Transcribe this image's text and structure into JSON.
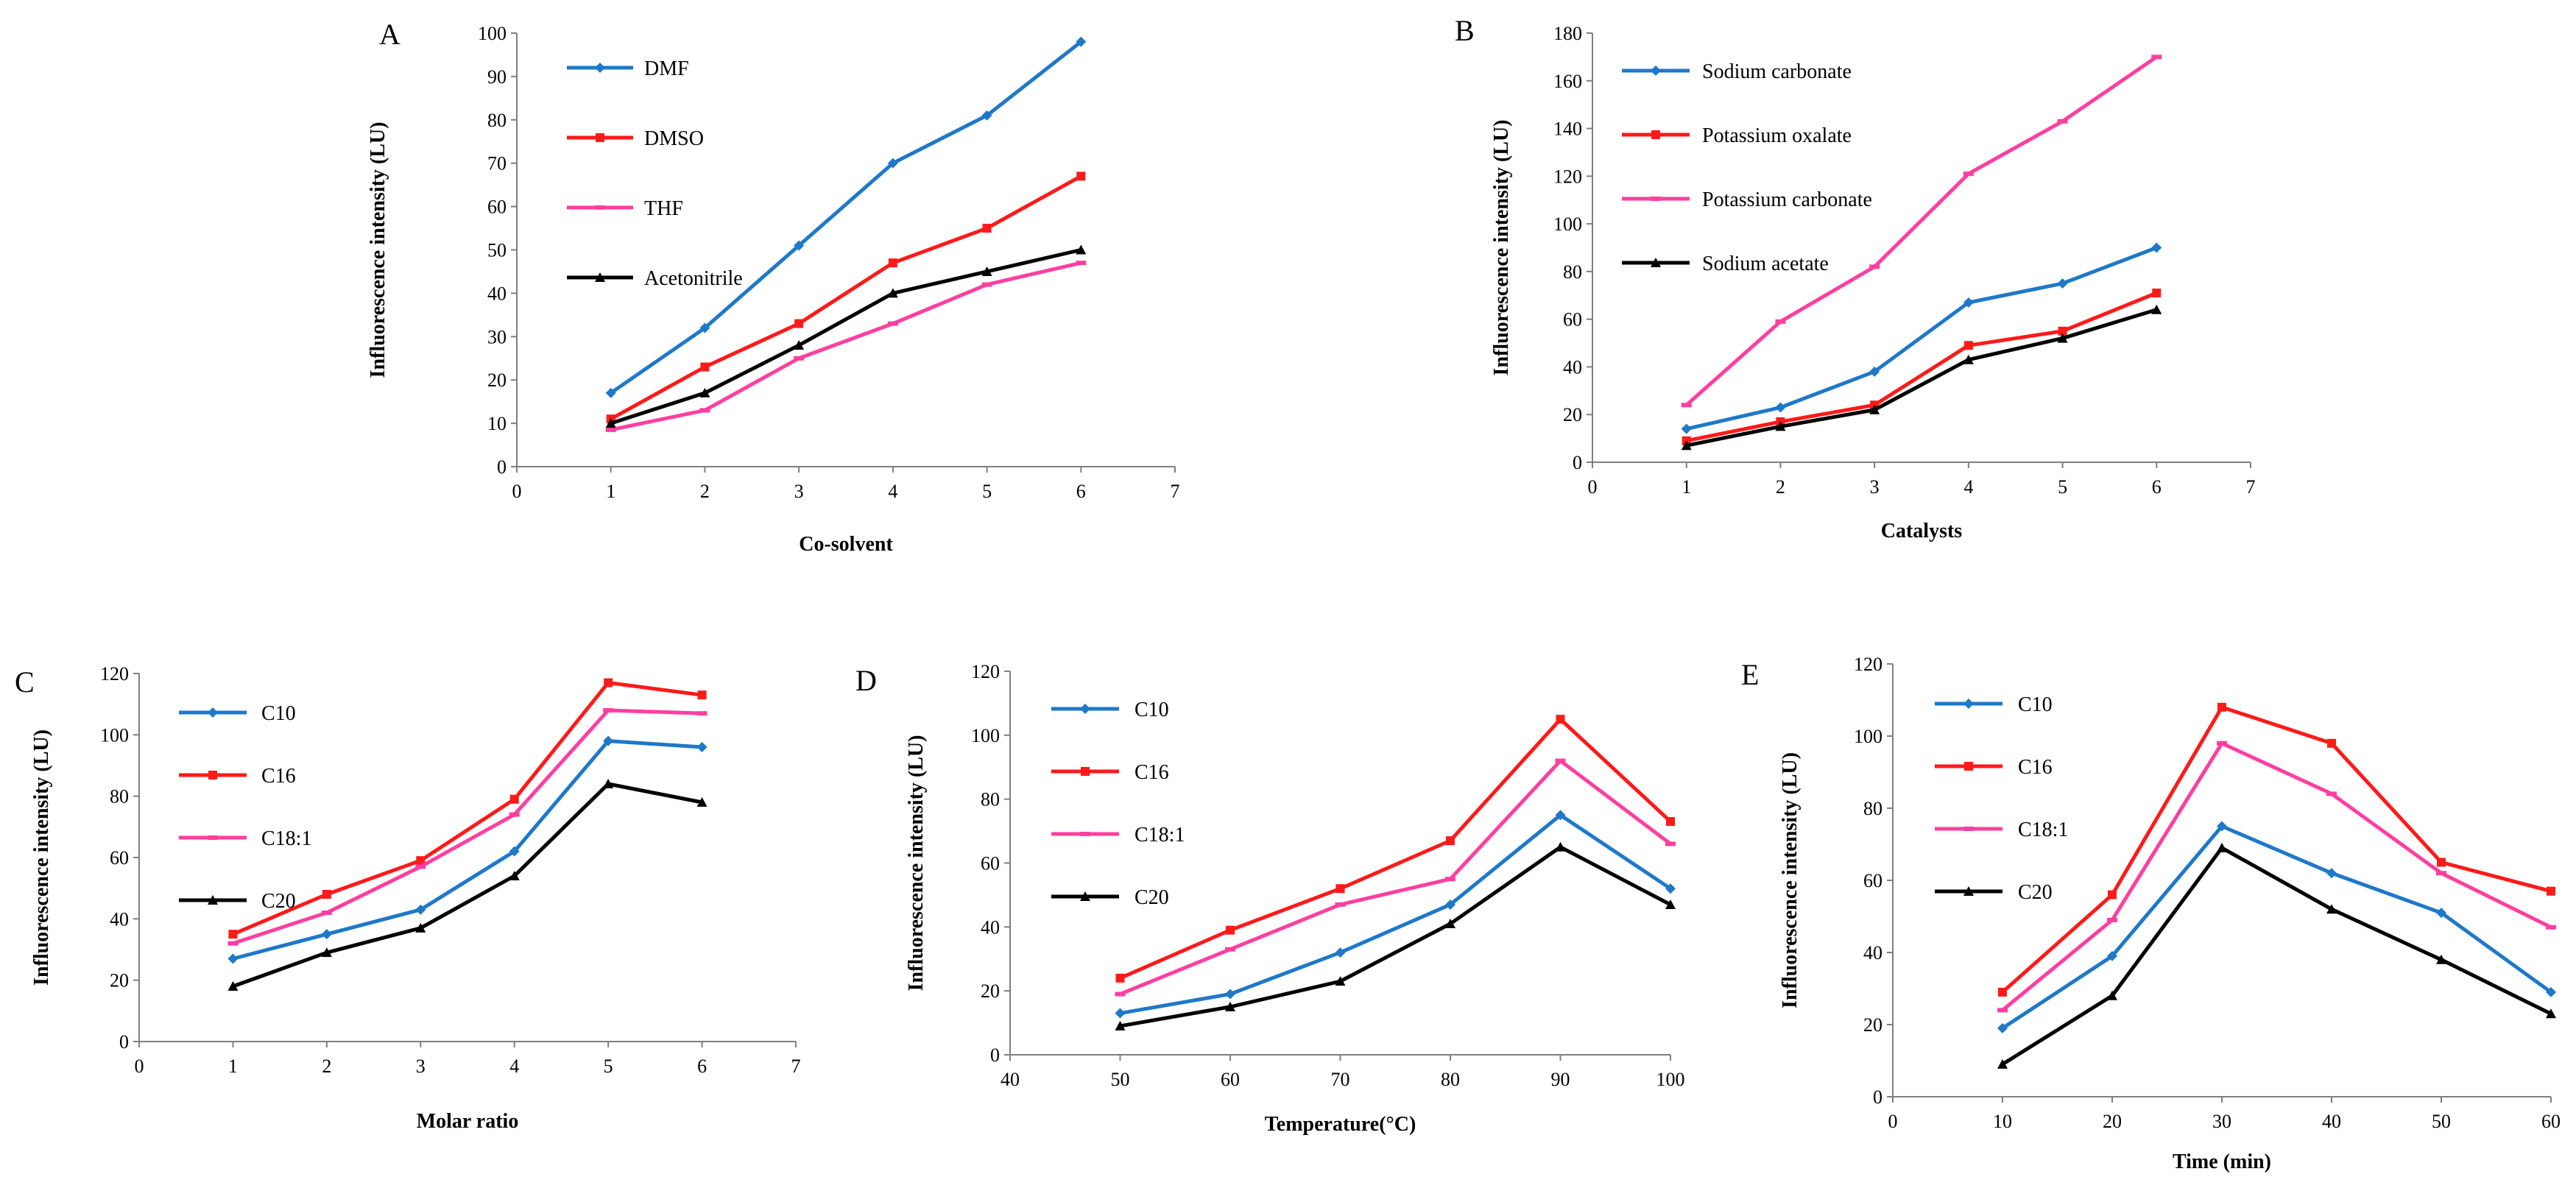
{
  "chart_data": [
    {
      "type": "line",
      "panel_label": "A",
      "xlabel": "Co-solvent",
      "ylabel": "Influorescence intensity (LU)",
      "xlim": [
        0,
        7
      ],
      "ylim": [
        0,
        100
      ],
      "xticks": [
        0,
        1,
        2,
        3,
        4,
        5,
        6,
        7
      ],
      "yticks": [
        0,
        10,
        20,
        30,
        40,
        50,
        60,
        70,
        80,
        90,
        100
      ],
      "x": [
        1,
        2,
        3,
        4,
        5,
        6
      ],
      "legend_position": "top-left",
      "series": [
        {
          "name": "DMF",
          "color": "#1f78c8",
          "marker": "diamond",
          "values": [
            17,
            32,
            51,
            70,
            81,
            98
          ]
        },
        {
          "name": "DMSO",
          "color": "#ff1a1a",
          "marker": "square",
          "values": [
            11,
            23,
            33,
            47,
            55,
            67
          ]
        },
        {
          "name": "THF",
          "color": "#ff3fa0",
          "marker": "dash",
          "values": [
            8.5,
            13,
            25,
            33,
            42,
            47
          ]
        },
        {
          "name": "Acetonitrile",
          "color": "#000000",
          "marker": "triangle",
          "values": [
            10,
            17,
            28,
            40,
            45,
            50
          ]
        }
      ]
    },
    {
      "type": "line",
      "panel_label": "B",
      "xlabel": "Catalysts",
      "ylabel": "Influorescence intensity (LU)",
      "xlim": [
        0,
        7
      ],
      "ylim": [
        0,
        180
      ],
      "xticks": [
        0,
        1,
        2,
        3,
        4,
        5,
        6,
        7
      ],
      "yticks": [
        0,
        20,
        40,
        60,
        80,
        100,
        120,
        140,
        160,
        180
      ],
      "x": [
        1,
        2,
        3,
        4,
        5,
        6
      ],
      "legend_position": "top-left",
      "series": [
        {
          "name": "Sodium carbonate",
          "color": "#1f78c8",
          "marker": "diamond",
          "values": [
            14,
            23,
            38,
            67,
            75,
            90
          ]
        },
        {
          "name": "Potassium oxalate",
          "color": "#ff1a1a",
          "marker": "square",
          "values": [
            9,
            17,
            24,
            49,
            55,
            71
          ]
        },
        {
          "name": "Potassium carbonate",
          "color": "#ff3fa0",
          "marker": "dash",
          "values": [
            24,
            59,
            82,
            121,
            143,
            170
          ]
        },
        {
          "name": "Sodium acetate",
          "color": "#000000",
          "marker": "triangle",
          "values": [
            7,
            15,
            22,
            43,
            52,
            64
          ]
        }
      ]
    },
    {
      "type": "line",
      "panel_label": "C",
      "xlabel": "Molar ratio",
      "ylabel": "Influorescence intensity (LU)",
      "xlim": [
        0,
        7
      ],
      "ylim": [
        0,
        120
      ],
      "xticks": [
        0,
        1,
        2,
        3,
        4,
        5,
        6,
        7
      ],
      "yticks": [
        0,
        20,
        40,
        60,
        80,
        100,
        120
      ],
      "x": [
        1,
        2,
        3,
        4,
        5,
        6
      ],
      "legend_position": "top-left",
      "series": [
        {
          "name": "C10",
          "color": "#1f78c8",
          "marker": "diamond",
          "values": [
            27,
            35,
            43,
            62,
            98,
            96
          ]
        },
        {
          "name": "C16",
          "color": "#ff1a1a",
          "marker": "square",
          "values": [
            35,
            48,
            59,
            79,
            117,
            113
          ]
        },
        {
          "name": "C18:1",
          "color": "#ff3fa0",
          "marker": "dash",
          "values": [
            32,
            42,
            57,
            74,
            108,
            107
          ]
        },
        {
          "name": "C20",
          "color": "#000000",
          "marker": "triangle",
          "values": [
            18,
            29,
            37,
            54,
            84,
            78
          ]
        }
      ]
    },
    {
      "type": "line",
      "panel_label": "D",
      "xlabel": "Temperature(°C)",
      "ylabel": "Influorescence intensity (LU)",
      "xlim": [
        40,
        100
      ],
      "ylim": [
        0,
        120
      ],
      "xticks": [
        40,
        50,
        60,
        70,
        80,
        90,
        100
      ],
      "yticks": [
        0,
        20,
        40,
        60,
        80,
        100,
        120
      ],
      "x": [
        50,
        60,
        70,
        80,
        90,
        100
      ],
      "legend_position": "top-left",
      "series": [
        {
          "name": "C10",
          "color": "#1f78c8",
          "marker": "diamond",
          "values": [
            13,
            19,
            32,
            47,
            75,
            52
          ]
        },
        {
          "name": "C16",
          "color": "#ff1a1a",
          "marker": "square",
          "values": [
            24,
            39,
            52,
            67,
            105,
            73
          ]
        },
        {
          "name": "C18:1",
          "color": "#ff3fa0",
          "marker": "dash",
          "values": [
            19,
            33,
            47,
            55,
            92,
            66
          ]
        },
        {
          "name": "C20",
          "color": "#000000",
          "marker": "triangle",
          "values": [
            9,
            15,
            23,
            41,
            65,
            47
          ]
        }
      ]
    },
    {
      "type": "line",
      "panel_label": "E",
      "xlabel": "Time (min)",
      "ylabel": "Influorescence intensity (LU)",
      "xlim": [
        0,
        60
      ],
      "ylim": [
        0,
        120
      ],
      "xticks": [
        0,
        10,
        20,
        30,
        40,
        50,
        60
      ],
      "yticks": [
        0,
        20,
        40,
        60,
        80,
        100,
        120
      ],
      "x": [
        10,
        20,
        30,
        40,
        50,
        60
      ],
      "legend_position": "top-left",
      "series": [
        {
          "name": "C10",
          "color": "#1f78c8",
          "marker": "diamond",
          "values": [
            19,
            39,
            75,
            62,
            51,
            29
          ]
        },
        {
          "name": "C16",
          "color": "#ff1a1a",
          "marker": "square",
          "values": [
            29,
            56,
            108,
            98,
            65,
            57
          ]
        },
        {
          "name": "C18:1",
          "color": "#ff3fa0",
          "marker": "dash",
          "values": [
            24,
            49,
            98,
            84,
            62,
            47
          ]
        },
        {
          "name": "C20",
          "color": "#000000",
          "marker": "triangle",
          "values": [
            9,
            28,
            69,
            52,
            38,
            23
          ]
        }
      ]
    }
  ]
}
